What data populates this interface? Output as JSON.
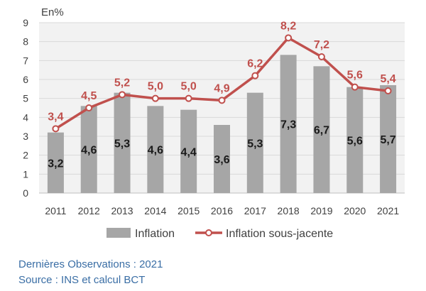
{
  "chart_data": {
    "type": "bar",
    "unit_label": "En%",
    "categories": [
      "2011",
      "2012",
      "2013",
      "2014",
      "2015",
      "2016",
      "2017",
      "2018",
      "2019",
      "2020",
      "2021"
    ],
    "series": [
      {
        "name": "Inflation",
        "kind": "bar",
        "color": "#a6a6a6",
        "values": [
          3.2,
          4.6,
          5.3,
          4.6,
          4.4,
          3.6,
          5.3,
          7.3,
          6.7,
          5.6,
          5.7
        ],
        "labels": [
          "3,2",
          "4,6",
          "5,3",
          "4,6",
          "4,4",
          "3,6",
          "5,3",
          "7,3",
          "6,7",
          "5,6",
          "5,7"
        ]
      },
      {
        "name": "Inflation sous-jacente",
        "kind": "line",
        "color": "#c0504d",
        "values": [
          3.4,
          4.5,
          5.2,
          5.0,
          5.0,
          4.9,
          6.2,
          8.2,
          7.2,
          5.6,
          5.4
        ],
        "labels": [
          "3,4",
          "4,5",
          "5,2",
          "5,0",
          "5,0",
          "4,9",
          "6,2",
          "8,2",
          "7,2",
          "5,6",
          "5,4"
        ]
      }
    ],
    "ylim": [
      0,
      9
    ],
    "yticks": [
      0,
      1,
      2,
      3,
      4,
      5,
      6,
      7,
      8,
      9
    ],
    "grid": true,
    "legend_position": "bottom"
  },
  "notes": {
    "last_observations": "Dernières Observations : 2021",
    "source": "Source : INS et calcul BCT"
  }
}
